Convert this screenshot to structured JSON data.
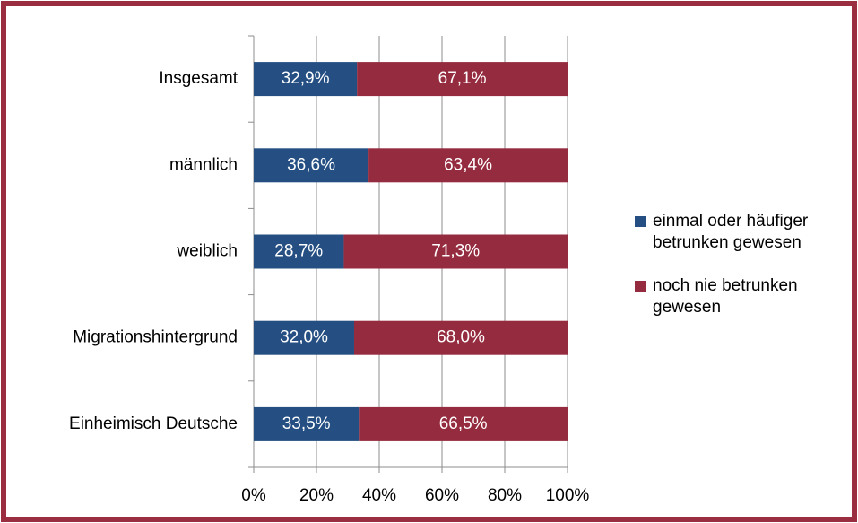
{
  "chart_data": {
    "type": "stacked_barh",
    "categories": [
      "Insgesamt",
      "männlich",
      "weiblich",
      "Migrationshintergrund",
      "Einheimisch Deutsche"
    ],
    "series": [
      {
        "name": "einmal oder häufiger betrunken gewesen",
        "color": "#254f82",
        "values": [
          32.9,
          36.6,
          28.7,
          32.0,
          33.5
        ],
        "value_labels": [
          "32,9%",
          "36,6%",
          "28,7%",
          "32,0%",
          "33,5%"
        ]
      },
      {
        "name": "noch nie betrunken gewesen",
        "color": "#952b3e",
        "values": [
          67.1,
          63.4,
          71.3,
          68.0,
          66.5
        ],
        "value_labels": [
          "67,1%",
          "63,4%",
          "71,3%",
          "68,0%",
          "66,5%"
        ]
      }
    ],
    "xlim": [
      0,
      100
    ],
    "xticks": [
      {
        "value": 0,
        "label": "0%"
      },
      {
        "value": 20,
        "label": "20%"
      },
      {
        "value": 40,
        "label": "40%"
      },
      {
        "value": 60,
        "label": "60%"
      },
      {
        "value": 80,
        "label": "80%"
      },
      {
        "value": 100,
        "label": "100%"
      }
    ],
    "grid": true,
    "legend": "right"
  }
}
